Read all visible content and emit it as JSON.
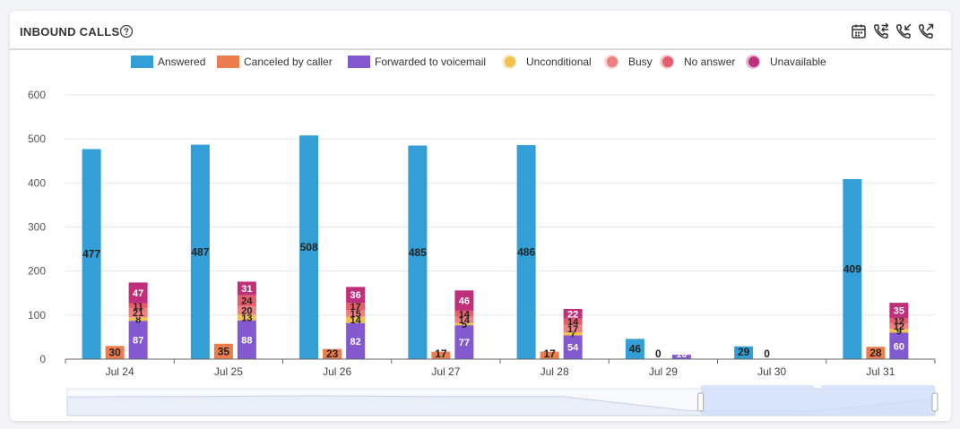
{
  "header": {
    "title": "INBOUND CALLS",
    "tools": [
      "calendar-icon",
      "phone-inout-icon",
      "phone-incoming-icon",
      "phone-outgoing-icon"
    ],
    "active_tool": 2
  },
  "chart_data": {
    "type": "bar",
    "categories": [
      "Jul 24",
      "Jul 25",
      "Jul 26",
      "Jul 27",
      "Jul 28",
      "Jul 29",
      "Jul 30",
      "Jul 31"
    ],
    "ylim": [
      0,
      600
    ],
    "yticks": [
      0,
      100,
      200,
      300,
      400,
      500,
      600
    ],
    "grid": true,
    "legend_position": "top-center",
    "series": [
      {
        "name": "Answered",
        "color": "#339fd6",
        "values": [
          477,
          487,
          508,
          485,
          486,
          46,
          29,
          409
        ]
      },
      {
        "name": "Canceled by caller",
        "color": "#ec7d4f",
        "values": [
          30,
          35,
          23,
          17,
          17,
          0,
          0,
          28
        ]
      }
    ],
    "stack_series": [
      {
        "name": "Forwarded to voicemail",
        "color": "#8259cf",
        "values": [
          87,
          88,
          82,
          77,
          54,
          10,
          0,
          60
        ]
      },
      {
        "name": "Unconditional",
        "color": "#f2c14e",
        "values": [
          8,
          13,
          14,
          5,
          7,
          0,
          0,
          9
        ]
      },
      {
        "name": "Busy",
        "color": "#f08080",
        "values": [
          21,
          20,
          15,
          14,
          17,
          0,
          0,
          12
        ]
      },
      {
        "name": "No answer",
        "color": "#e35d6a",
        "values": [
          11,
          24,
          17,
          14,
          14,
          0,
          0,
          12
        ]
      },
      {
        "name": "Unavailable",
        "color": "#c0307a",
        "values": [
          47,
          31,
          36,
          46,
          22,
          0,
          0,
          35
        ]
      }
    ]
  }
}
